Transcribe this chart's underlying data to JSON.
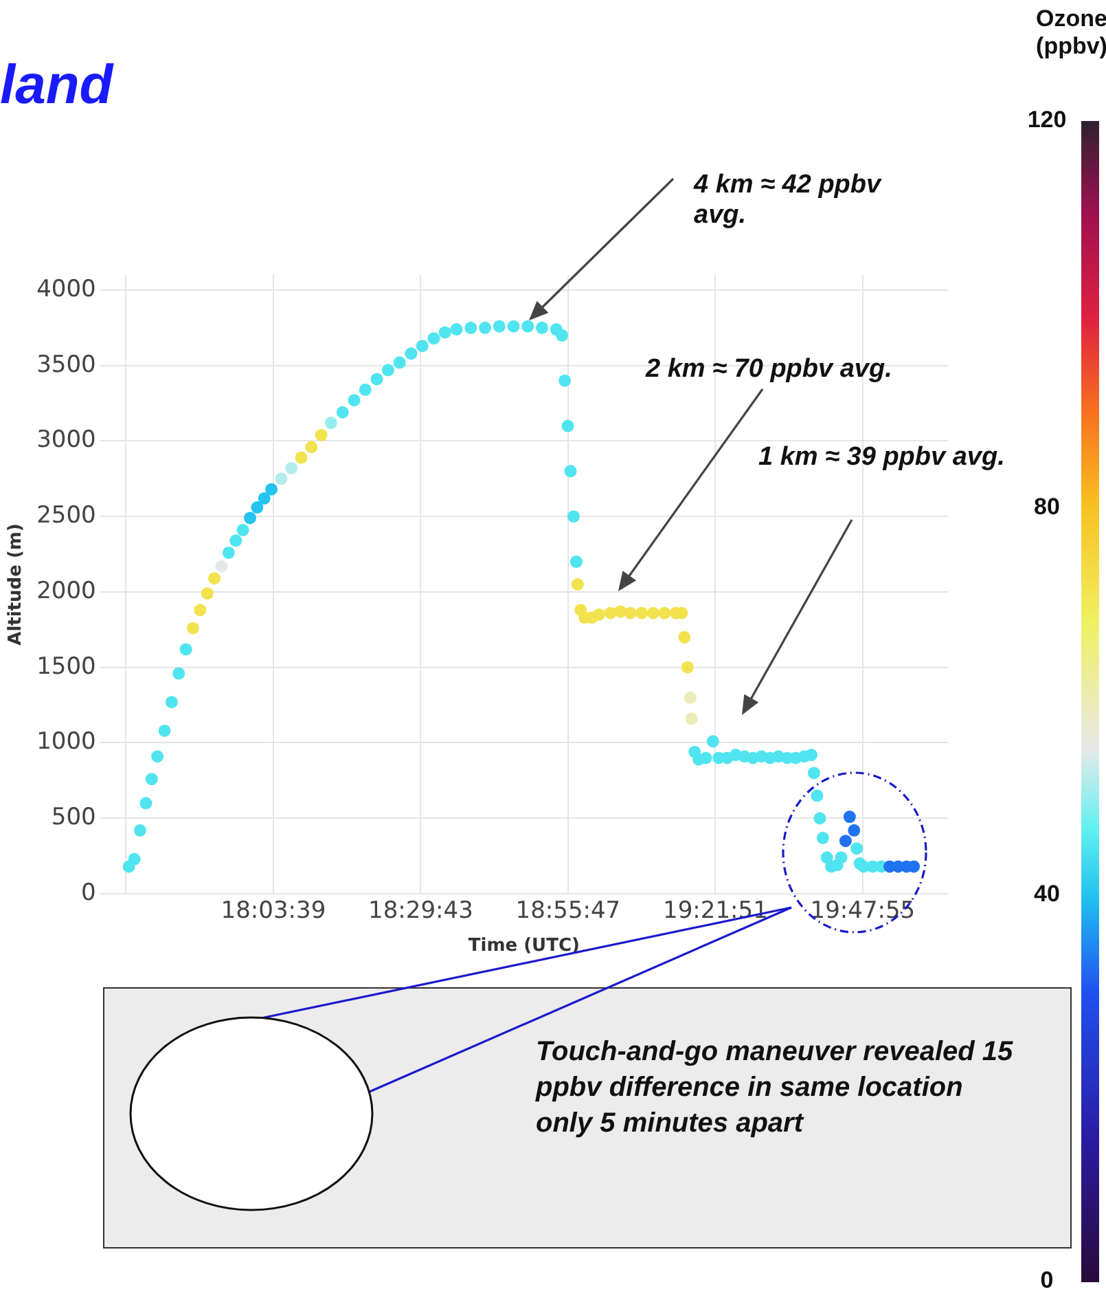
{
  "chart_data": {
    "type": "scatter",
    "title": "land",
    "xlabel": "Time (UTC)",
    "ylabel": "Altitude (m)",
    "clabel": "Ozone (ppbv)",
    "xlim": [
      17.55,
      20.05
    ],
    "xticks": [
      {
        "value": 17.6264,
        "label": null
      },
      {
        "value": 18.0608,
        "label": "18:03:39"
      },
      {
        "value": 18.4953,
        "label": "18:29:43"
      },
      {
        "value": 18.9297,
        "label": "18:55:47"
      },
      {
        "value": 19.3642,
        "label": "19:21:51"
      },
      {
        "value": 19.7986,
        "label": "19:47:55"
      }
    ],
    "ylim": [
      0,
      4100
    ],
    "yticks": [
      0,
      500,
      1000,
      1500,
      2000,
      2500,
      3000,
      3500,
      4000
    ],
    "clim": [
      0,
      120
    ],
    "cticks": [
      0,
      40,
      80,
      120
    ],
    "grid": true,
    "marker": "circle",
    "x": [
      17.635,
      17.651,
      17.668,
      17.685,
      17.702,
      17.719,
      17.74,
      17.761,
      17.782,
      17.803,
      17.824,
      17.845,
      17.866,
      17.887,
      17.908,
      17.929,
      17.95,
      17.971,
      17.992,
      18.013,
      18.034,
      18.055,
      18.084,
      18.114,
      18.143,
      18.173,
      18.202,
      18.231,
      18.265,
      18.299,
      18.332,
      18.366,
      18.399,
      18.433,
      18.467,
      18.5,
      18.534,
      18.567,
      18.601,
      18.643,
      18.685,
      18.727,
      18.769,
      18.811,
      18.853,
      18.895,
      18.912,
      18.92,
      18.929,
      18.937,
      18.946,
      18.954,
      18.958,
      18.967,
      18.979,
      19.0,
      19.021,
      19.055,
      19.084,
      19.114,
      19.147,
      19.181,
      19.214,
      19.248,
      19.265,
      19.273,
      19.282,
      19.29,
      19.294,
      19.303,
      19.315,
      19.336,
      19.357,
      19.374,
      19.399,
      19.424,
      19.45,
      19.475,
      19.5,
      19.525,
      19.55,
      19.576,
      19.601,
      19.626,
      19.647,
      19.655,
      19.664,
      19.672,
      19.681,
      19.693,
      19.706,
      19.723,
      19.735,
      19.748,
      19.76,
      19.773,
      19.781,
      19.79,
      19.802,
      19.828,
      19.853,
      19.878,
      19.903,
      19.928,
      19.949
    ],
    "values": [
      180,
      230,
      420,
      600,
      760,
      910,
      1080,
      1270,
      1460,
      1620,
      1760,
      1880,
      1990,
      2090,
      2170,
      2260,
      2340,
      2410,
      2490,
      2560,
      2620,
      2680,
      2750,
      2820,
      2890,
      2960,
      3040,
      3120,
      3190,
      3270,
      3340,
      3410,
      3470,
      3520,
      3580,
      3630,
      3680,
      3720,
      3740,
      3750,
      3750,
      3760,
      3760,
      3760,
      3750,
      3740,
      3700,
      3400,
      3100,
      2800,
      2500,
      2200,
      2050,
      1880,
      1830,
      1830,
      1850,
      1860,
      1870,
      1860,
      1860,
      1860,
      1860,
      1860,
      1860,
      1700,
      1500,
      1300,
      1160,
      940,
      890,
      900,
      1010,
      900,
      900,
      920,
      910,
      900,
      910,
      900,
      910,
      900,
      900,
      910,
      920,
      800,
      650,
      500,
      370,
      240,
      180,
      190,
      240,
      350,
      510,
      420,
      300,
      200,
      180,
      180,
      180,
      180,
      180,
      180,
      180
    ],
    "cvalues": [
      45,
      45,
      45,
      45,
      45,
      45,
      45,
      45,
      45,
      45,
      72,
      72,
      72,
      72,
      55,
      45,
      45,
      45,
      40,
      40,
      40,
      40,
      52,
      52,
      72,
      72,
      72,
      50,
      45,
      45,
      45,
      45,
      45,
      45,
      45,
      45,
      45,
      45,
      45,
      45,
      45,
      45,
      45,
      45,
      45,
      45,
      45,
      45,
      45,
      45,
      45,
      45,
      72,
      72,
      72,
      72,
      72,
      72,
      72,
      72,
      72,
      72,
      72,
      72,
      72,
      72,
      72,
      60,
      60,
      45,
      45,
      45,
      45,
      45,
      45,
      45,
      45,
      45,
      45,
      45,
      45,
      45,
      45,
      45,
      45,
      45,
      45,
      45,
      45,
      45,
      45,
      45,
      45,
      33,
      33,
      33,
      45,
      45,
      45,
      45,
      45,
      33,
      33,
      33,
      33
    ],
    "annotations": [
      "4 km ≈ 42 ppbv avg.",
      "2 km ≈ 70 ppbv avg.",
      "1 km ≈ 39 ppbv avg.",
      "Touch-and-go maneuver revealed 15 ppbv difference  in same location only 5 minutes apart"
    ]
  }
}
